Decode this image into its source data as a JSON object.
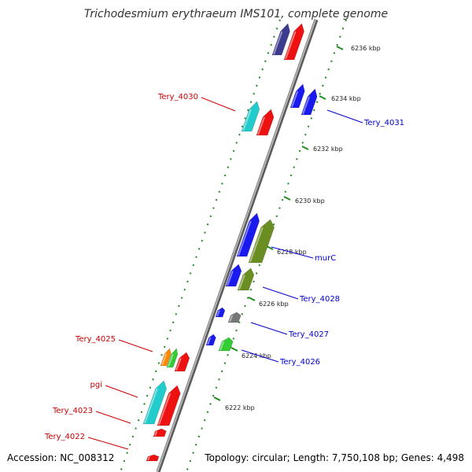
{
  "title": "Trichodesmium erythraeum IMS101, complete genome",
  "accession": "Accession: NC_008312",
  "topology": "Topology: circular; Length: 7,750,108 bp; Genes: 4,498",
  "colors": {
    "backbone": "#8a8a8a",
    "tick": "#1f8a1f",
    "label_left": "#cc0000",
    "label_right": "#0000cc"
  },
  "ticks": [
    {
      "label": "6222 kbp"
    },
    {
      "label": "6224 kbp"
    },
    {
      "label": "6226 kbp"
    },
    {
      "label": "6228 kbp"
    },
    {
      "label": "6230 kbp"
    },
    {
      "label": "6232 kbp"
    },
    {
      "label": "6234 kbp"
    },
    {
      "label": "6236 kbp"
    }
  ],
  "gene_labels": [
    {
      "text": "Tery_4030",
      "side": "left"
    },
    {
      "text": "Tery_4031",
      "side": "right"
    },
    {
      "text": "murC",
      "side": "right"
    },
    {
      "text": "Tery_4028",
      "side": "right"
    },
    {
      "text": "Tery_4027",
      "side": "right"
    },
    {
      "text": "Tery_4026",
      "side": "right"
    },
    {
      "text": "Tery_4025",
      "side": "left"
    },
    {
      "text": "pgi",
      "side": "left"
    },
    {
      "text": "Tery_4023",
      "side": "left"
    },
    {
      "text": "Tery_4022",
      "side": "left"
    }
  ],
  "gene_colors": {
    "red": "#ee1111",
    "blue": "#1a1aee",
    "cyan": "#22cccc",
    "olive": "#6b8e23",
    "navy": "#3b3b8f",
    "gray": "#777777",
    "green": "#33cc33",
    "orange": "#ff8800"
  }
}
